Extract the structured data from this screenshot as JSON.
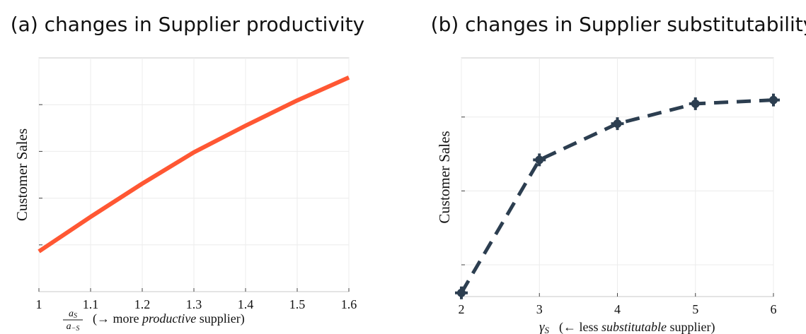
{
  "chart_data": [
    {
      "type": "line",
      "title": "(a) changes in Supplier productivity",
      "ylabel": "Customer Sales",
      "xlabel_fraction": {
        "num": {
          "base": "a",
          "sub": "S"
        },
        "den": {
          "base": "a",
          "sub": "−S"
        }
      },
      "xlabel_parts": [
        {
          "text": "(→ more "
        },
        {
          "text": "productive",
          "italic": true
        },
        {
          "text": " supplier)"
        }
      ],
      "x": [
        1,
        1.1,
        1.2,
        1.3,
        1.4,
        1.5,
        1.6
      ],
      "series": [
        {
          "color": "#ff5733",
          "line_style": "solid",
          "values": [
            0.86,
            1.6,
            2.31,
            2.98,
            3.55,
            4.09,
            4.58
          ]
        }
      ],
      "xlim": [
        1,
        1.6
      ],
      "xticks": [
        1,
        1.1,
        1.2,
        1.3,
        1.4,
        1.5,
        1.6
      ],
      "ylim": [
        0,
        5
      ],
      "yticks": [
        1,
        2,
        3,
        4
      ],
      "ytick_labels": false,
      "grid": true
    },
    {
      "type": "line",
      "title": "(b) changes in Supplier substitutability",
      "ylabel": "Customer Sales",
      "xlabel_symbol": {
        "base": "γ",
        "sub": "S"
      },
      "xlabel_parts": [
        {
          "text": "(← less "
        },
        {
          "text": "substitutable",
          "italic": true
        },
        {
          "text": " supplier)"
        }
      ],
      "x": [
        2,
        3,
        4,
        5,
        6
      ],
      "series": [
        {
          "color": "#2c3e50",
          "line_style": "dashed",
          "marker": "plus-circle",
          "values": [
            0.62,
            2.42,
            2.91,
            3.18,
            3.23
          ]
        }
      ],
      "xlim": [
        2,
        6
      ],
      "xticks": [
        2,
        3,
        4,
        5,
        6
      ],
      "ylim": [
        0.57,
        3.8
      ],
      "yticks": [
        1,
        2,
        3
      ],
      "ytick_labels": false,
      "grid": true
    }
  ]
}
